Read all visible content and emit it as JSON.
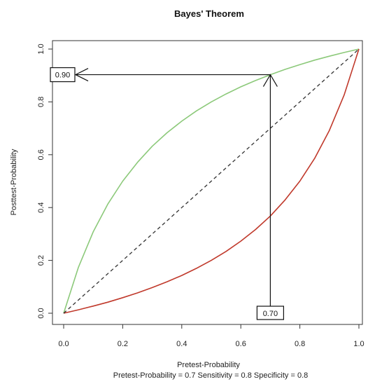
{
  "chart_data": {
    "type": "line",
    "title": "Bayes' Theorem",
    "xlabel": "Pretest-Probability",
    "ylabel": "Posttest-Probability",
    "subtitle": "Pretest-Probability = 0.7 Sensitivity = 0.8 Specificity = 0.8",
    "xlim": [
      0,
      1
    ],
    "ylim": [
      0,
      1
    ],
    "x_ticks": [
      "0.0",
      "0.2",
      "0.4",
      "0.6",
      "0.8",
      "1.0"
    ],
    "y_ticks": [
      "0.0",
      "0.2",
      "0.4",
      "0.6",
      "0.8",
      "1.0"
    ],
    "grid": false,
    "x": [
      0,
      0.05,
      0.1,
      0.15,
      0.2,
      0.25,
      0.3,
      0.35,
      0.4,
      0.45,
      0.5,
      0.55,
      0.6,
      0.65,
      0.7,
      0.75,
      0.8,
      0.85,
      0.9,
      0.95,
      1
    ],
    "series": [
      {
        "color": "#8cc97a",
        "values": [
          0,
          0.174,
          0.308,
          0.414,
          0.5,
          0.571,
          0.632,
          0.683,
          0.727,
          0.766,
          0.8,
          0.83,
          0.857,
          0.881,
          0.903,
          0.923,
          0.941,
          0.958,
          0.973,
          0.987,
          1
        ]
      },
      {
        "color": "#c0392b",
        "values": [
          0,
          0.013,
          0.027,
          0.042,
          0.059,
          0.077,
          0.097,
          0.119,
          0.143,
          0.17,
          0.2,
          0.234,
          0.273,
          0.317,
          0.368,
          0.429,
          0.5,
          0.586,
          0.692,
          0.826,
          1
        ]
      },
      {
        "color": "#333333",
        "dashed": true,
        "values": [
          0,
          0.05,
          0.1,
          0.15,
          0.2,
          0.25,
          0.3,
          0.35,
          0.4,
          0.45,
          0.5,
          0.55,
          0.6,
          0.65,
          0.7,
          0.75,
          0.8,
          0.85,
          0.9,
          0.95,
          1
        ]
      }
    ],
    "annotations": {
      "pretest_value": 0.7,
      "pretest_label": "0.70",
      "posttest_value": 0.903,
      "posttest_label": "0.90"
    }
  }
}
